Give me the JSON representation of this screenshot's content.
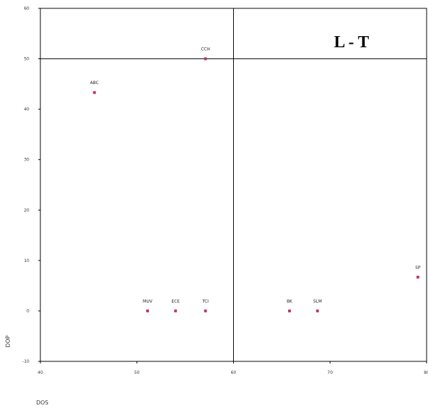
{
  "chart_data": {
    "type": "scatter",
    "title": "",
    "xlabel": "DOS",
    "ylabel": "DOP",
    "quadrant_label": "L - T",
    "xlim": [
      40,
      80
    ],
    "ylim": [
      -10,
      60
    ],
    "x_ticks": [
      "40",
      "50",
      "60",
      "70",
      "80"
    ],
    "y_ticks": [
      "-10",
      "0",
      "10",
      "20",
      "30",
      "40",
      "50",
      "60"
    ],
    "reference_lines": {
      "x": 60,
      "y": 50
    },
    "grid": false,
    "marker_color": "#c0306a",
    "points": [
      {
        "label": "ABC",
        "x": 45.6,
        "y": 43.3
      },
      {
        "label": "CCH",
        "x": 57.1,
        "y": 50.0
      },
      {
        "label": "MUV",
        "x": 51.1,
        "y": 0.0
      },
      {
        "label": "ECE",
        "x": 54.0,
        "y": 0.0
      },
      {
        "label": "TCI",
        "x": 57.1,
        "y": 0.0
      },
      {
        "label": "BK",
        "x": 65.8,
        "y": 0.0
      },
      {
        "label": "SLM",
        "x": 68.7,
        "y": 0.0
      },
      {
        "label": "SP",
        "x": 79.1,
        "y": 6.7
      }
    ]
  }
}
